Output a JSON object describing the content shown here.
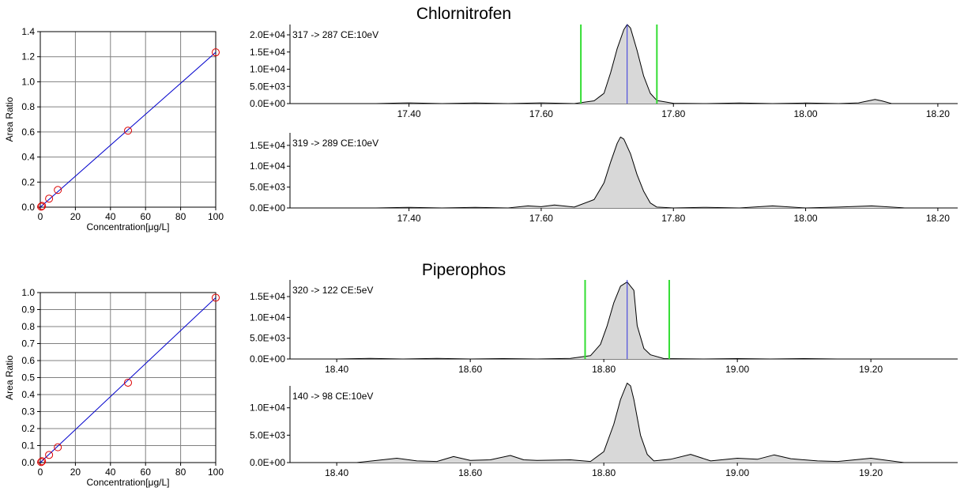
{
  "titles": [
    "Chlornitrofen",
    "Piperophos"
  ],
  "chart_data": [
    {
      "type": "scatter",
      "title": "",
      "xlabel": "Concentration[μg/L]",
      "ylabel": "Area Ratio",
      "xlim": [
        0,
        100
      ],
      "ylim": [
        0,
        1.4
      ],
      "xticks": [
        "0",
        "20",
        "40",
        "60",
        "80",
        "100"
      ],
      "yticks": [
        "0.0",
        "0.2",
        "0.4",
        "0.6",
        "0.8",
        "1.0",
        "1.2",
        "1.4"
      ],
      "grid": true,
      "points": [
        [
          0.5,
          0.004
        ],
        [
          1,
          0.01
        ],
        [
          5,
          0.068
        ],
        [
          10,
          0.137
        ],
        [
          50,
          0.61
        ],
        [
          100,
          1.235
        ]
      ],
      "fit_line": [
        [
          0,
          0.0
        ],
        [
          100,
          1.235
        ]
      ],
      "colors": {
        "marker": "#dd0000",
        "fit": "#0000cc"
      }
    },
    {
      "type": "line",
      "title": "317 -> 287 CE:10eV",
      "xlim": [
        17.22,
        18.23
      ],
      "ylim": [
        0,
        23000
      ],
      "xticks": [
        "17.40",
        "17.60",
        "17.80",
        "18.00",
        "18.20"
      ],
      "yticks": [
        "0.0E+00",
        "5.0E+03",
        "1.0E+04",
        "1.5E+04",
        "2.0E+04"
      ],
      "x": [
        17.22,
        17.35,
        17.4,
        17.45,
        17.5,
        17.55,
        17.6,
        17.65,
        17.68,
        17.695,
        17.705,
        17.715,
        17.725,
        17.73,
        17.735,
        17.745,
        17.755,
        17.765,
        17.775,
        17.8,
        17.85,
        17.9,
        17.95,
        18.0,
        18.05,
        18.08,
        18.095,
        18.105,
        18.115,
        18.13,
        18.23
      ],
      "values": [
        0,
        0,
        200,
        0,
        150,
        0,
        200,
        0,
        800,
        3000,
        9000,
        16000,
        21500,
        23000,
        22000,
        15500,
        8000,
        3000,
        900,
        100,
        0,
        150,
        0,
        150,
        0,
        200,
        800,
        1200,
        800,
        0,
        0
      ],
      "markers": {
        "window": [
          17.66,
          17.775
        ],
        "apex": 17.73
      },
      "colors": {
        "trace": "#000000",
        "fill": "#d8d8d8",
        "window": "#33dd33",
        "apex": "#3333dd"
      }
    },
    {
      "type": "line",
      "title": "319 -> 289 CE:10eV",
      "xlim": [
        17.22,
        18.23
      ],
      "ylim": [
        0,
        18000
      ],
      "xticks": [
        "17.40",
        "17.60",
        "17.80",
        "18.00",
        "18.20"
      ],
      "yticks": [
        "0.0E+00",
        "5.0E+03",
        "1.0E+04",
        "1.5E+04"
      ],
      "x": [
        17.22,
        17.35,
        17.4,
        17.45,
        17.5,
        17.55,
        17.58,
        17.6,
        17.62,
        17.65,
        17.68,
        17.695,
        17.705,
        17.715,
        17.72,
        17.725,
        17.735,
        17.745,
        17.755,
        17.765,
        17.775,
        17.8,
        17.85,
        17.9,
        17.95,
        18.0,
        18.05,
        18.1,
        18.15,
        18.23
      ],
      "values": [
        0,
        0,
        150,
        0,
        150,
        0,
        500,
        300,
        700,
        200,
        2000,
        6000,
        11000,
        15500,
        17000,
        16500,
        13000,
        8000,
        4000,
        1200,
        200,
        0,
        150,
        0,
        500,
        0,
        200,
        500,
        0,
        0
      ],
      "colors": {
        "trace": "#000000",
        "fill": "#d8d8d8"
      }
    },
    {
      "type": "scatter",
      "title": "",
      "xlabel": "Concentration[μg/L]",
      "ylabel": "Area Ratio",
      "xlim": [
        0,
        100
      ],
      "ylim": [
        0,
        1.0
      ],
      "xticks": [
        "0",
        "20",
        "40",
        "60",
        "80",
        "100"
      ],
      "yticks": [
        "0.0",
        "0.1",
        "0.2",
        "0.3",
        "0.4",
        "0.5",
        "0.6",
        "0.7",
        "0.8",
        "0.9",
        "1.0"
      ],
      "grid": true,
      "points": [
        [
          0.5,
          0.003
        ],
        [
          1,
          0.008
        ],
        [
          5,
          0.045
        ],
        [
          10,
          0.09
        ],
        [
          50,
          0.47
        ],
        [
          100,
          0.97
        ]
      ],
      "fit_line": [
        [
          0,
          0.0
        ],
        [
          100,
          0.97
        ]
      ],
      "colors": {
        "marker": "#dd0000",
        "fit": "#0000cc"
      }
    },
    {
      "type": "line",
      "title": "320 -> 122 CE:5eV",
      "xlim": [
        18.33,
        19.33
      ],
      "ylim": [
        0,
        19000
      ],
      "xticks": [
        "18.40",
        "18.60",
        "18.80",
        "19.00",
        "19.20"
      ],
      "yticks": [
        "0.0E+00",
        "5.0E+03",
        "1.0E+04",
        "1.5E+04"
      ],
      "x": [
        18.33,
        18.4,
        18.45,
        18.5,
        18.55,
        18.6,
        18.65,
        18.7,
        18.75,
        18.78,
        18.795,
        18.805,
        18.815,
        18.825,
        18.835,
        18.845,
        18.85,
        18.86,
        18.87,
        18.89,
        18.95,
        19.0,
        19.05,
        19.1,
        19.15,
        19.33
      ],
      "values": [
        0,
        0,
        150,
        0,
        150,
        0,
        100,
        0,
        150,
        800,
        3500,
        8000,
        13500,
        17500,
        18500,
        16500,
        8000,
        2500,
        1000,
        100,
        0,
        100,
        0,
        100,
        0,
        0
      ],
      "markers": {
        "window": [
          18.772,
          18.898
        ],
        "apex": 18.835
      },
      "colors": {
        "trace": "#000000",
        "fill": "#d8d8d8",
        "window": "#33dd33",
        "apex": "#3333dd"
      }
    },
    {
      "type": "line",
      "title": "140 -> 98 CE:10eV",
      "xlim": [
        18.33,
        19.33
      ],
      "ylim": [
        0,
        14000
      ],
      "xticks": [
        "18.40",
        "18.60",
        "18.80",
        "19.00",
        "19.20"
      ],
      "yticks": [
        "0.0E+00",
        "5.0E+03",
        "1.0E+04"
      ],
      "x": [
        18.33,
        18.43,
        18.46,
        18.49,
        18.52,
        18.55,
        18.575,
        18.6,
        18.63,
        18.66,
        18.68,
        18.7,
        18.75,
        18.78,
        18.8,
        18.815,
        18.825,
        18.835,
        18.84,
        18.845,
        18.855,
        18.865,
        18.875,
        18.9,
        18.93,
        18.96,
        19.0,
        19.03,
        19.055,
        19.08,
        19.12,
        19.15,
        19.2,
        19.25,
        19.33
      ],
      "values": [
        0,
        0,
        400,
        800,
        300,
        200,
        1100,
        400,
        500,
        1300,
        500,
        400,
        500,
        200,
        2000,
        7000,
        11500,
        14500,
        14000,
        11500,
        5000,
        1500,
        300,
        600,
        1500,
        300,
        800,
        600,
        1400,
        700,
        300,
        200,
        800,
        0,
        0
      ],
      "colors": {
        "trace": "#000000",
        "fill": "#d8d8d8"
      }
    }
  ]
}
